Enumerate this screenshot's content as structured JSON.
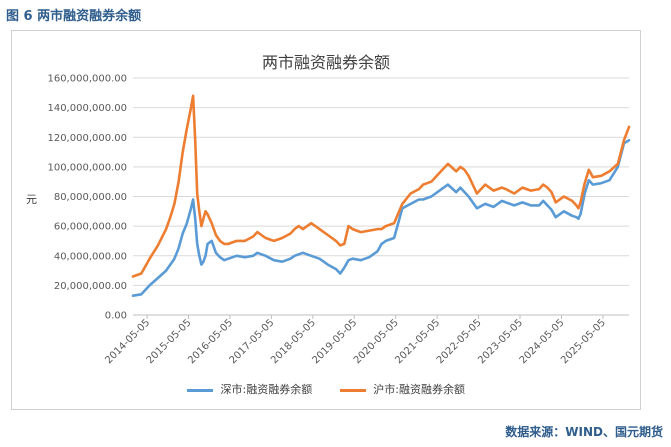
{
  "figure_caption": "图 6  两市融资融券余额",
  "source": "数据来源：WIND、国元期货",
  "chart_data": {
    "type": "line",
    "title": "两市融资融券余额",
    "ylabel": "元",
    "xlabel": "",
    "ylim": [
      0,
      160000000
    ],
    "yticks": [
      0,
      20000000,
      40000000,
      60000000,
      80000000,
      100000000,
      120000000,
      140000000,
      160000000
    ],
    "ytick_labels": [
      "0.00",
      "20,000,000.00",
      "40,000,000.00",
      "60,000,000.00",
      "80,000,000.00",
      "100,000,000.00",
      "120,000,000.00",
      "140,000,000.00",
      "160,000,000.00"
    ],
    "xlim": [
      2014.0,
      2025.97
    ],
    "xticks": [
      2014.34,
      2015.34,
      2016.34,
      2017.34,
      2018.34,
      2019.34,
      2020.34,
      2021.34,
      2022.34,
      2023.34,
      2024.34,
      2025.34
    ],
    "xtick_labels": [
      "2014-05-05",
      "2015-05-05",
      "2016-05-05",
      "2017-05-05",
      "2018-05-05",
      "2019-05-05",
      "2020-05-05",
      "2021-05-05",
      "2022-05-05",
      "2023-05-05",
      "2024-05-05",
      "2025-05-05"
    ],
    "grid": "horizontal",
    "legend_position": "bottom",
    "series": [
      {
        "name": "深市:融资融券余额",
        "color": "#5b9bd5",
        "x": [
          2014.0,
          2014.2,
          2014.4,
          2014.6,
          2014.8,
          2014.9,
          2015.0,
          2015.1,
          2015.2,
          2015.3,
          2015.4,
          2015.45,
          2015.5,
          2015.55,
          2015.6,
          2015.65,
          2015.7,
          2015.75,
          2015.8,
          2015.9,
          2016.0,
          2016.1,
          2016.2,
          2016.3,
          2016.5,
          2016.7,
          2016.9,
          2017.0,
          2017.2,
          2017.4,
          2017.6,
          2017.8,
          2017.9,
          2018.0,
          2018.1,
          2018.3,
          2018.5,
          2018.7,
          2018.9,
          2019.0,
          2019.1,
          2019.2,
          2019.3,
          2019.5,
          2019.7,
          2019.9,
          2020.0,
          2020.1,
          2020.3,
          2020.5,
          2020.7,
          2020.9,
          2021.0,
          2021.2,
          2021.4,
          2021.6,
          2021.8,
          2021.9,
          2022.0,
          2022.1,
          2022.3,
          2022.5,
          2022.7,
          2022.9,
          2023.0,
          2023.2,
          2023.4,
          2023.6,
          2023.8,
          2023.9,
          2024.0,
          2024.1,
          2024.2,
          2024.4,
          2024.6,
          2024.7,
          2024.75,
          2024.8,
          2024.9,
          2025.0,
          2025.1,
          2025.3,
          2025.5,
          2025.7,
          2025.85,
          2025.97
        ],
        "values": [
          13000000,
          14000000,
          20000000,
          25000000,
          30000000,
          34000000,
          38000000,
          45000000,
          55000000,
          62000000,
          72000000,
          78000000,
          65000000,
          48000000,
          40000000,
          34000000,
          36000000,
          40000000,
          48000000,
          50000000,
          42000000,
          39000000,
          37000000,
          38000000,
          40000000,
          39000000,
          40000000,
          42000000,
          40000000,
          37000000,
          36000000,
          38000000,
          40000000,
          41000000,
          42000000,
          40000000,
          38000000,
          34000000,
          31000000,
          28000000,
          32000000,
          37000000,
          38000000,
          37000000,
          39000000,
          43000000,
          48000000,
          50000000,
          52000000,
          72000000,
          75000000,
          78000000,
          78000000,
          80000000,
          84000000,
          88000000,
          83000000,
          86000000,
          83000000,
          80000000,
          72000000,
          75000000,
          73000000,
          77000000,
          76000000,
          74000000,
          76000000,
          74000000,
          74000000,
          77000000,
          74000000,
          71000000,
          66000000,
          70000000,
          67000000,
          66000000,
          65000000,
          68000000,
          82000000,
          91000000,
          88000000,
          89000000,
          91000000,
          100000000,
          116000000,
          118000000
        ]
      },
      {
        "name": "沪市:融资融券余额",
        "color": "#ed7d31",
        "x": [
          2014.0,
          2014.2,
          2014.4,
          2014.6,
          2014.8,
          2014.9,
          2015.0,
          2015.1,
          2015.2,
          2015.3,
          2015.4,
          2015.45,
          2015.5,
          2015.55,
          2015.6,
          2015.65,
          2015.7,
          2015.75,
          2015.8,
          2015.9,
          2016.0,
          2016.1,
          2016.2,
          2016.3,
          2016.5,
          2016.7,
          2016.9,
          2017.0,
          2017.2,
          2017.4,
          2017.6,
          2017.8,
          2017.9,
          2018.0,
          2018.1,
          2018.3,
          2018.5,
          2018.7,
          2018.9,
          2019.0,
          2019.1,
          2019.2,
          2019.3,
          2019.5,
          2019.7,
          2019.9,
          2020.0,
          2020.1,
          2020.3,
          2020.5,
          2020.7,
          2020.9,
          2021.0,
          2021.2,
          2021.4,
          2021.6,
          2021.8,
          2021.9,
          2022.0,
          2022.1,
          2022.3,
          2022.5,
          2022.7,
          2022.9,
          2023.0,
          2023.2,
          2023.4,
          2023.6,
          2023.8,
          2023.9,
          2024.0,
          2024.1,
          2024.2,
          2024.4,
          2024.6,
          2024.7,
          2024.75,
          2024.8,
          2024.9,
          2025.0,
          2025.1,
          2025.3,
          2025.5,
          2025.7,
          2025.85,
          2025.97
        ],
        "values": [
          26000000,
          28000000,
          38000000,
          47000000,
          58000000,
          66000000,
          75000000,
          90000000,
          110000000,
          126000000,
          140000000,
          148000000,
          118000000,
          82000000,
          70000000,
          60000000,
          65000000,
          70000000,
          68000000,
          62000000,
          54000000,
          50000000,
          48000000,
          48000000,
          50000000,
          50000000,
          53000000,
          56000000,
          52000000,
          50000000,
          52000000,
          55000000,
          58000000,
          60000000,
          58000000,
          62000000,
          58000000,
          54000000,
          50000000,
          47000000,
          48000000,
          60000000,
          58000000,
          56000000,
          57000000,
          58000000,
          58000000,
          60000000,
          62000000,
          75000000,
          82000000,
          85000000,
          88000000,
          90000000,
          96000000,
          102000000,
          97000000,
          100000000,
          98000000,
          94000000,
          82000000,
          88000000,
          84000000,
          86000000,
          85000000,
          82000000,
          86000000,
          84000000,
          85000000,
          88000000,
          86000000,
          83000000,
          76000000,
          80000000,
          77000000,
          74000000,
          72000000,
          76000000,
          89000000,
          98000000,
          93000000,
          94000000,
          97000000,
          102000000,
          118000000,
          127000000
        ]
      }
    ]
  }
}
